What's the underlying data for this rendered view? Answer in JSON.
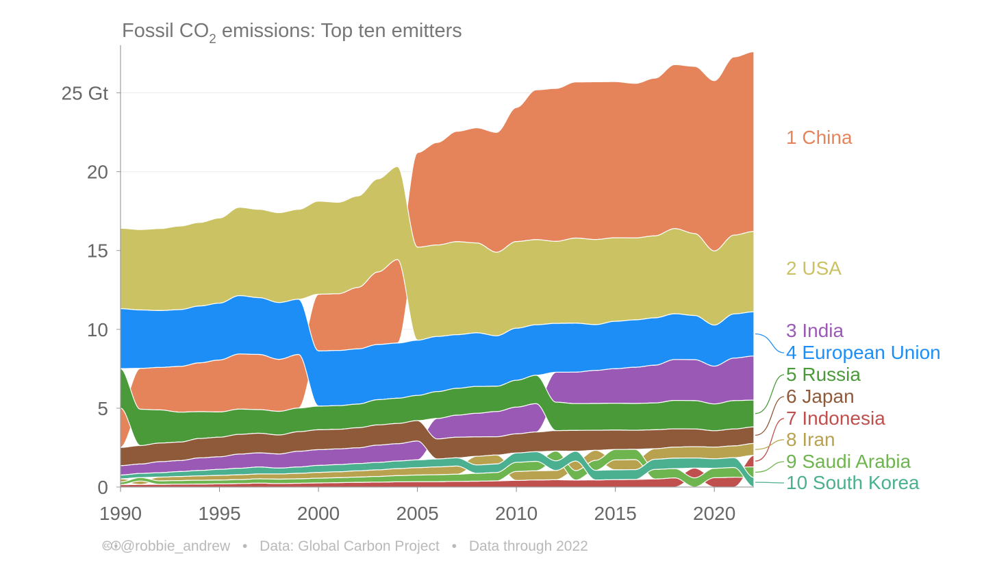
{
  "chart_data": {
    "type": "area",
    "title_prefix": "Fossil CO",
    "title_sub": "2",
    "title_suffix": " emissions: Top ten emitters",
    "unit": "Gt",
    "ylim": [
      0,
      27.5
    ],
    "xlim": [
      1990,
      2022
    ],
    "x_ticks": [
      "1990",
      "1995",
      "2000",
      "2005",
      "2010",
      "2015",
      "2020"
    ],
    "y_ticks": [
      "0",
      "5",
      "10",
      "15",
      "20",
      "25 Gt"
    ],
    "x": [
      1990,
      1991,
      1992,
      1993,
      1994,
      1995,
      1996,
      1997,
      1998,
      1999,
      2000,
      2001,
      2002,
      2003,
      2004,
      2005,
      2006,
      2007,
      2008,
      2009,
      2010,
      2011,
      2012,
      2013,
      2014,
      2015,
      2016,
      2017,
      2018,
      2019,
      2020,
      2021,
      2022
    ],
    "series": [
      {
        "rank_label": "1 China",
        "color": "#e5845a",
        "values": [
          2.5,
          2.6,
          2.7,
          2.9,
          3.1,
          3.3,
          3.5,
          3.5,
          3.3,
          3.4,
          3.6,
          3.6,
          3.9,
          4.6,
          5.3,
          6.0,
          6.5,
          7.0,
          7.3,
          7.6,
          8.5,
          9.5,
          9.7,
          9.9,
          10.0,
          9.9,
          9.8,
          10.0,
          10.4,
          10.6,
          10.8,
          11.3,
          11.4
        ]
      },
      {
        "rank_label": "2 USA",
        "color": "#cbc264",
        "values": [
          5.1,
          5.1,
          5.2,
          5.3,
          5.3,
          5.4,
          5.6,
          5.6,
          5.7,
          5.7,
          5.9,
          5.8,
          5.8,
          5.9,
          5.9,
          5.9,
          5.8,
          5.9,
          5.7,
          5.3,
          5.5,
          5.4,
          5.2,
          5.4,
          5.4,
          5.3,
          5.2,
          5.2,
          5.4,
          5.2,
          4.7,
          5.0,
          5.1
        ]
      },
      {
        "rank_label": "3 India",
        "color": "#9b59b6",
        "values": [
          0.6,
          0.6,
          0.7,
          0.7,
          0.8,
          0.8,
          0.9,
          0.9,
          0.9,
          1.0,
          1.0,
          1.0,
          1.0,
          1.1,
          1.1,
          1.2,
          1.3,
          1.4,
          1.5,
          1.6,
          1.7,
          1.8,
          1.9,
          2.0,
          2.1,
          2.2,
          2.3,
          2.4,
          2.6,
          2.6,
          2.4,
          2.7,
          2.8
        ]
      },
      {
        "rank_label": "4 European Union",
        "color": "#1e8ef7",
        "values": [
          3.8,
          3.7,
          3.6,
          3.6,
          3.6,
          3.6,
          3.7,
          3.6,
          3.6,
          3.5,
          3.5,
          3.5,
          3.5,
          3.5,
          3.5,
          3.5,
          3.5,
          3.4,
          3.4,
          3.2,
          3.3,
          3.2,
          3.1,
          3.1,
          2.9,
          3.0,
          3.0,
          3.0,
          2.9,
          2.8,
          2.6,
          2.8,
          2.8
        ]
      },
      {
        "rank_label": "5 Russia",
        "color": "#4a9a3a",
        "values": [
          2.5,
          2.3,
          2.1,
          1.9,
          1.7,
          1.6,
          1.6,
          1.5,
          1.5,
          1.5,
          1.5,
          1.5,
          1.5,
          1.6,
          1.6,
          1.6,
          1.7,
          1.7,
          1.7,
          1.6,
          1.7,
          1.8,
          1.8,
          1.7,
          1.7,
          1.7,
          1.7,
          1.7,
          1.8,
          1.8,
          1.7,
          1.8,
          1.7
        ]
      },
      {
        "rank_label": "6 Japan",
        "color": "#8e5a3a",
        "values": [
          1.15,
          1.17,
          1.18,
          1.17,
          1.23,
          1.24,
          1.25,
          1.24,
          1.2,
          1.24,
          1.26,
          1.24,
          1.27,
          1.28,
          1.28,
          1.29,
          1.27,
          1.31,
          1.23,
          1.16,
          1.21,
          1.25,
          1.3,
          1.32,
          1.27,
          1.23,
          1.21,
          1.2,
          1.16,
          1.12,
          1.04,
          1.07,
          1.05
        ]
      },
      {
        "rank_label": "7 Indonesia",
        "color": "#c0504d",
        "values": [
          0.15,
          0.16,
          0.17,
          0.18,
          0.19,
          0.2,
          0.22,
          0.25,
          0.22,
          0.24,
          0.26,
          0.28,
          0.3,
          0.31,
          0.33,
          0.34,
          0.34,
          0.36,
          0.37,
          0.39,
          0.42,
          0.45,
          0.46,
          0.44,
          0.45,
          0.47,
          0.48,
          0.51,
          0.58,
          0.62,
          0.59,
          0.62,
          0.73
        ]
      },
      {
        "rank_label": "8 Iran",
        "color": "#b8a250",
        "values": [
          0.2,
          0.22,
          0.24,
          0.26,
          0.28,
          0.3,
          0.31,
          0.31,
          0.33,
          0.35,
          0.37,
          0.38,
          0.4,
          0.42,
          0.45,
          0.47,
          0.5,
          0.52,
          0.55,
          0.57,
          0.57,
          0.58,
          0.59,
          0.61,
          0.64,
          0.63,
          0.64,
          0.67,
          0.7,
          0.72,
          0.74,
          0.75,
          0.75
        ]
      },
      {
        "rank_label": "9 Saudi Arabia",
        "color": "#6fb54f",
        "values": [
          0.17,
          0.22,
          0.22,
          0.23,
          0.24,
          0.24,
          0.25,
          0.27,
          0.28,
          0.28,
          0.3,
          0.31,
          0.33,
          0.36,
          0.39,
          0.42,
          0.44,
          0.45,
          0.5,
          0.53,
          0.58,
          0.6,
          0.62,
          0.6,
          0.63,
          0.66,
          0.65,
          0.61,
          0.59,
          0.58,
          0.6,
          0.62,
          0.68
        ]
      },
      {
        "rank_label": "10 South Korea",
        "color": "#4bb08f",
        "values": [
          0.24,
          0.26,
          0.28,
          0.31,
          0.34,
          0.38,
          0.41,
          0.44,
          0.37,
          0.4,
          0.44,
          0.45,
          0.46,
          0.47,
          0.48,
          0.49,
          0.5,
          0.52,
          0.53,
          0.54,
          0.59,
          0.61,
          0.61,
          0.62,
          0.61,
          0.62,
          0.62,
          0.64,
          0.66,
          0.64,
          0.6,
          0.62,
          0.6
        ]
      }
    ]
  },
  "footer": {
    "cc_icons": "🅭🅯",
    "handle": "@robbie_andrew",
    "source": "Data: Global Carbon Project",
    "through": "Data through 2022",
    "separator": "•"
  }
}
